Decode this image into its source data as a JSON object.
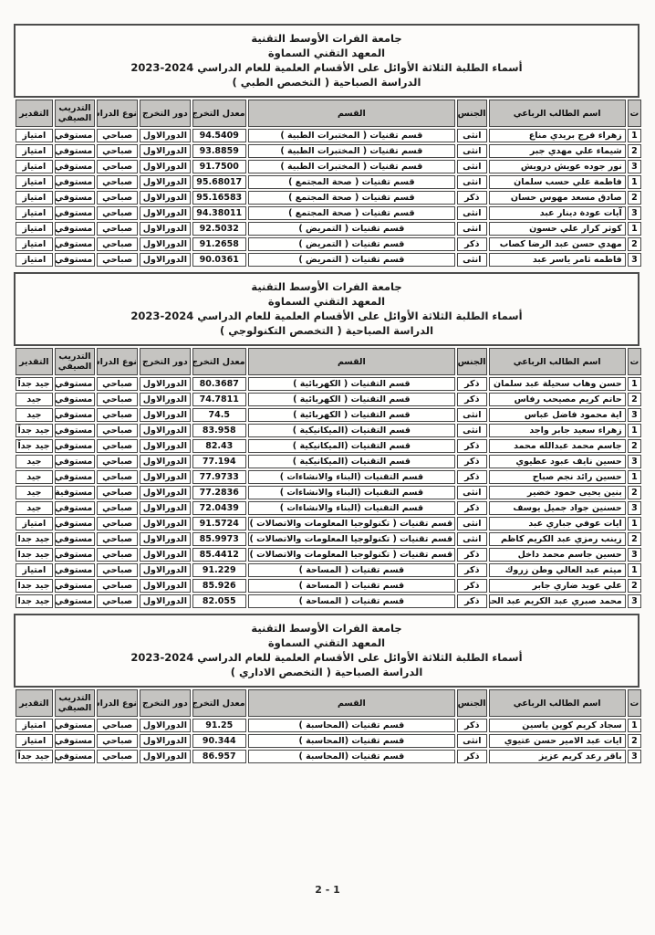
{
  "page": {
    "footer": "2 - 1"
  },
  "columns": [
    "ت",
    "اسم الطالب الرباعي",
    "الجنس",
    "القسم",
    "معدل التخرج",
    "دور التخرج",
    "نوع الدراسة",
    "التدريب الصيفي",
    "التقدير"
  ],
  "sections": [
    {
      "title_lines": [
        "جامعة الفرات الأوسط التقنية",
        "المعهد التقني السماوة",
        "أسماء الطلبة الثلاثة الأوائل على الأقسام العلمية للعام الدراسي 2024-2023",
        "الدراسة الصباحية  ( التخصص الطبي )"
      ],
      "rows": [
        {
          "no": "1",
          "name": "زهراء فرج بريدي مناع",
          "gender": "انثى",
          "dept": "قسم تقنيات ( المختبرات الطبية )",
          "avg": "94.5409",
          "round": "الدورالاول",
          "study_type": "صباحي",
          "summer_training": "مستوفي",
          "grade": "امتياز"
        },
        {
          "no": "2",
          "name": "شيماء علي مهدي جبر",
          "gender": "انثى",
          "dept": "قسم تقنيات ( المختبرات الطبية )",
          "avg": "93.8859",
          "round": "الدورالاول",
          "study_type": "صباحي",
          "summer_training": "مستوفي",
          "grade": "امتياز"
        },
        {
          "no": "3",
          "name": "نور جوده عويش درويش",
          "gender": "انثى",
          "dept": "قسم تقنيات ( المختبرات الطبية )",
          "avg": "91.7500",
          "round": "الدورالاول",
          "study_type": "صباحي",
          "summer_training": "مستوفي",
          "grade": "امتياز"
        },
        {
          "no": "1",
          "name": "فاطمة علي حسب سلمان",
          "gender": "انثى",
          "dept": "قسم تقنيات ( صحة المجتمع )",
          "avg": "95.68017",
          "round": "الدورالاول",
          "study_type": "صباحي",
          "summer_training": "مستوفي",
          "grade": "امتياز"
        },
        {
          "no": "2",
          "name": "صادق مسعد مهوس حسان",
          "gender": "ذكر",
          "dept": "قسم تقنيات ( صحة المجتمع )",
          "avg": "95.16583",
          "round": "الدورالاول",
          "study_type": "صباحي",
          "summer_training": "مستوفي",
          "grade": "امتياز"
        },
        {
          "no": "3",
          "name": "آيات عودة دينار عبد",
          "gender": "انثى",
          "dept": "قسم تقنيات ( صحة المجتمع )",
          "avg": "94.38011",
          "round": "الدورالاول",
          "study_type": "صباحي",
          "summer_training": "مستوفي",
          "grade": "امتياز"
        },
        {
          "no": "1",
          "name": "كوثر كرار علي حسون",
          "gender": "انثى",
          "dept": "قسم تقنيات ( التمريض )",
          "avg": "92.5032",
          "round": "الدورالاول",
          "study_type": "صباحي",
          "summer_training": "مستوفي",
          "grade": "امتياز"
        },
        {
          "no": "2",
          "name": "مهدي حسن عبد الرضا كصاب",
          "gender": "ذكر",
          "dept": "قسم تقنيات ( التمريض )",
          "avg": "91.2658",
          "round": "الدورالاول",
          "study_type": "صباحي",
          "summer_training": "مستوفي",
          "grade": "امتياز"
        },
        {
          "no": "3",
          "name": "فاطمه ثامر ياسر عبد",
          "gender": "انثى",
          "dept": "قسم تقنيات ( التمريض )",
          "avg": "90.0361",
          "round": "الدورالاول",
          "study_type": "صباحي",
          "summer_training": "مستوفي",
          "grade": "امتياز"
        }
      ]
    },
    {
      "title_lines": [
        "جامعة الفرات الأوسط التقنية",
        "المعهد التقني السماوة",
        "أسماء الطلبة الثلاثة الأوائل على الأقسام العلمية للعام الدراسي 2024-2023",
        "الدراسة الصباحية  ( التخصص التكنولوجي )"
      ],
      "rows": [
        {
          "no": "1",
          "name": "حسن وهاب سحيلة عبد سلمان",
          "gender": "ذكر",
          "dept": "قسم التقنيات ( الكهربائية )",
          "avg": "80.3687",
          "round": "الدورالاول",
          "study_type": "صباحي",
          "summer_training": "مستوفي",
          "grade": "جيد جداً"
        },
        {
          "no": "2",
          "name": "حاتم كريم مصيحب رفاس",
          "gender": "ذكر",
          "dept": "قسم التقنيات ( الكهربائية )",
          "avg": "74.7811",
          "round": "الدورالاول",
          "study_type": "صباحي",
          "summer_training": "مستوفي",
          "grade": "جيد"
        },
        {
          "no": "3",
          "name": "اية محمود فاضل عباس",
          "gender": "انثى",
          "dept": "قسم التقنيات ( الكهربائية )",
          "avg": "74.5",
          "round": "الدورالاول",
          "study_type": "صباحي",
          "summer_training": "مستوفي",
          "grade": "جيد"
        },
        {
          "no": "1",
          "name": "زهراء سعيد جابر واجد",
          "gender": "انثى",
          "dept": "قسم التقنيات (الميكانيكية )",
          "avg": "83.958",
          "round": "الدورالاول",
          "study_type": "صباحي",
          "summer_training": "مستوفي",
          "grade": "جيد جداً"
        },
        {
          "no": "2",
          "name": "جاسم محمد عبدالله محمد",
          "gender": "ذكر",
          "dept": "قسم التقنيات (الميكانيكية )",
          "avg": "82.43",
          "round": "الدورالاول",
          "study_type": "صباحي",
          "summer_training": "مستوفي",
          "grade": "جيد جداً"
        },
        {
          "no": "3",
          "name": "حسين نايف عبود عطيوي",
          "gender": "ذكر",
          "dept": "قسم التقنيات (الميكانيكية )",
          "avg": "77.194",
          "round": "الدورالاول",
          "study_type": "صباحي",
          "summer_training": "مستوفي",
          "grade": "جيد"
        },
        {
          "no": "1",
          "name": "حسين رائد نجم صباح",
          "gender": "ذكر",
          "dept": "قسم التقنيات (البناء والانشاءات )",
          "avg": "77.9733",
          "round": "الدورالاول",
          "study_type": "صباحي",
          "summer_training": "مستوفي",
          "grade": "جيد"
        },
        {
          "no": "2",
          "name": "بنين يحيى حمود خضير",
          "gender": "انثى",
          "dept": "قسم التقنيات (البناء والانشاءات )",
          "avg": "77.2836",
          "round": "الدورالاول",
          "study_type": "صباحي",
          "summer_training": "مستوفية",
          "grade": "جيد"
        },
        {
          "no": "3",
          "name": "حسنين جواد جميل يوسف",
          "gender": "ذكر",
          "dept": "قسم التقنيات (البناء والانشاءات )",
          "avg": "72.0439",
          "round": "الدورالاول",
          "study_type": "صباحي",
          "summer_training": "مستوفي",
          "grade": "جيد"
        },
        {
          "no": "1",
          "name": "ايات عوفي جباري عبد",
          "gender": "انثى",
          "dept": "قسم تقنيات ( تكنولوجيا المعلومات والاتصالات )",
          "avg": "91.5724",
          "round": "الدورالاول",
          "study_type": "صباحي",
          "summer_training": "مستوفي",
          "grade": "امتياز"
        },
        {
          "no": "2",
          "name": "زينب رمزي عبد الكريم كاظم",
          "gender": "انثى",
          "dept": "قسم تقنيات ( تكنولوجيا المعلومات والاتصالات )",
          "avg": "85.9973",
          "round": "الدورالاول",
          "study_type": "صباحي",
          "summer_training": "مستوفي",
          "grade": "جيد جدا"
        },
        {
          "no": "3",
          "name": "حسين جاسم محمد داخل",
          "gender": "ذكر",
          "dept": "قسم تقنيات ( تكنولوجيا المعلومات والاتصالات )",
          "avg": "85.4412",
          "round": "الدورالاول",
          "study_type": "صباحي",
          "summer_training": "مستوفي",
          "grade": "جيد جدا"
        },
        {
          "no": "1",
          "name": "ميثم عبد العالي وطن زروك",
          "gender": "ذكر",
          "dept": "قسم تقنيات ( المساحة )",
          "avg": "91.229",
          "round": "الدورالاول",
          "study_type": "صباحي",
          "summer_training": "مستوفي",
          "grade": "امتياز"
        },
        {
          "no": "2",
          "name": "علي عويد ضاري جابر",
          "gender": "ذكر",
          "dept": "قسم تقنيات ( المساحة )",
          "avg": "85.926",
          "round": "الدورالاول",
          "study_type": "صباحي",
          "summer_training": "مستوفي",
          "grade": "جيد جدا"
        },
        {
          "no": "3",
          "name": "محمد صبري عبد الكريم عبد الحسين",
          "gender": "ذكر",
          "dept": "قسم تقنيات ( المساحة )",
          "avg": "82.055",
          "round": "الدورالاول",
          "study_type": "صباحي",
          "summer_training": "مستوفي",
          "grade": "جيد جدا"
        }
      ]
    },
    {
      "title_lines": [
        "جامعة الفرات الأوسط التقنية",
        "المعهد التقني السماوة",
        "أسماء الطلبة الثلاثة الأوائل على الأقسام العلمية للعام الدراسي 2024-2023",
        "الدراسة الصباحية  ( التخصص الاداري )"
      ],
      "rows": [
        {
          "no": "1",
          "name": "سجاد كريم كوين ياسين",
          "gender": "ذكر",
          "dept": "قسم تقنيات (المحاسبة )",
          "avg": "91.25",
          "round": "الدورالاول",
          "study_type": "صباحي",
          "summer_training": "مستوفي",
          "grade": "امتياز"
        },
        {
          "no": "2",
          "name": "ايات عبد الامير حسن عتيوي",
          "gender": "انثى",
          "dept": "قسم تقنيات (المحاسبة )",
          "avg": "90.344",
          "round": "الدورالاول",
          "study_type": "صباحي",
          "summer_training": "مستوفي",
          "grade": "امتياز"
        },
        {
          "no": "3",
          "name": "باقر رعد كريم عزيز",
          "gender": "ذكر",
          "dept": "قسم تقنيات (المحاسبة )",
          "avg": "86.957",
          "round": "الدورالاول",
          "study_type": "صباحي",
          "summer_training": "مستوفي",
          "grade": "جيد جداً"
        }
      ]
    }
  ]
}
